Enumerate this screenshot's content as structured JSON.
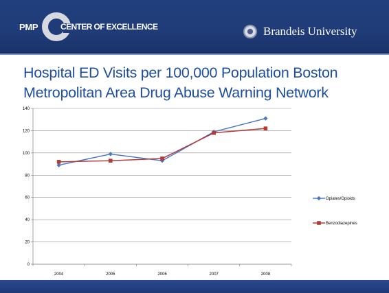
{
  "header": {
    "logo_pmp": "PMP",
    "logo_center": "CENTER OF EXCELLENCE",
    "brand": "Brandeis University"
  },
  "slide": {
    "title_line1": "Hospital ED Visits per 100,000 Population  Boston",
    "title_line2": "Metropolitan Area Drug Abuse Warning Network"
  },
  "colors": {
    "header_bg": "#1f3c78",
    "title": "#1f4f9c",
    "series_opiates": "#4a78c4",
    "series_benzo": "#b23b3b"
  },
  "chart_data": {
    "type": "line",
    "categories": [
      "2004",
      "2005",
      "2006",
      "2007",
      "2008"
    ],
    "series": [
      {
        "name": "Opiates/Opioids",
        "values": [
          89,
          99,
          93,
          119,
          131
        ],
        "marker": "diamond"
      },
      {
        "name": "Benzodiazepines",
        "values": [
          92,
          93,
          95,
          118,
          122
        ],
        "marker": "square"
      }
    ],
    "yticks": [
      0,
      20,
      40,
      60,
      80,
      100,
      120,
      140
    ],
    "ylim": [
      0,
      140
    ],
    "xlabel": "",
    "ylabel": "",
    "grid": true,
    "legend_position": "right"
  }
}
